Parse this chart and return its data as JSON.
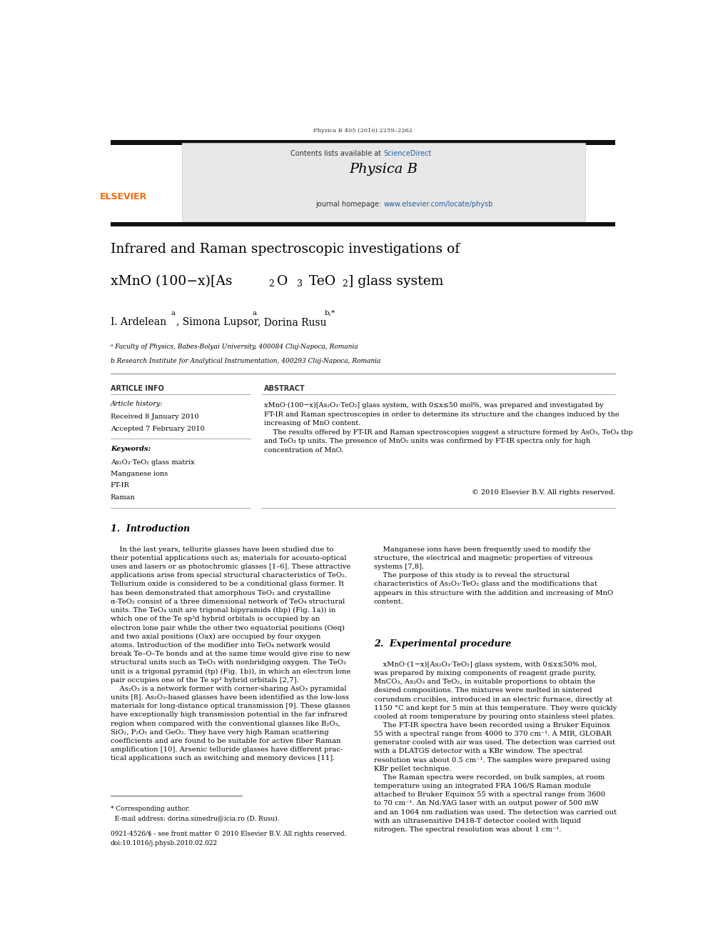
{
  "page_width": 9.92,
  "page_height": 13.23,
  "background_color": "#ffffff",
  "header_journal": "Physica B 405 (2010) 2259–2262",
  "journal_name": "Physica B",
  "contents_text": "Contents lists available at ScienceDirect",
  "sciencedirect_color": "#2060a0",
  "journal_url": "www.elsevier.com/locate/physb",
  "journal_url_color": "#2060a0",
  "header_bg": "#e8e8e8",
  "title_line1": "Infrared and Raman spectroscopic investigations of",
  "title_line2_a": "xMnO (100−x)[As",
  "title_line2_g": "] glass system",
  "authors_a": "I. Ardelean",
  "authors_b": ", Simona Lupsor",
  "authors_c": ", Dorina Rusu",
  "affil_a": "ᵃ Faculty of Physics, Babes-Bolyai University, 400084 Cluj-Napoca, Romania",
  "affil_b": "b Research Institute for Analytical Instrumentation, 400293 Cluj-Napoca, Romania",
  "article_info_title": "ARTICLE INFO",
  "abstract_title": "ABSTRACT",
  "elsevier_color": "#ff6600",
  "black_bar_color": "#111111"
}
